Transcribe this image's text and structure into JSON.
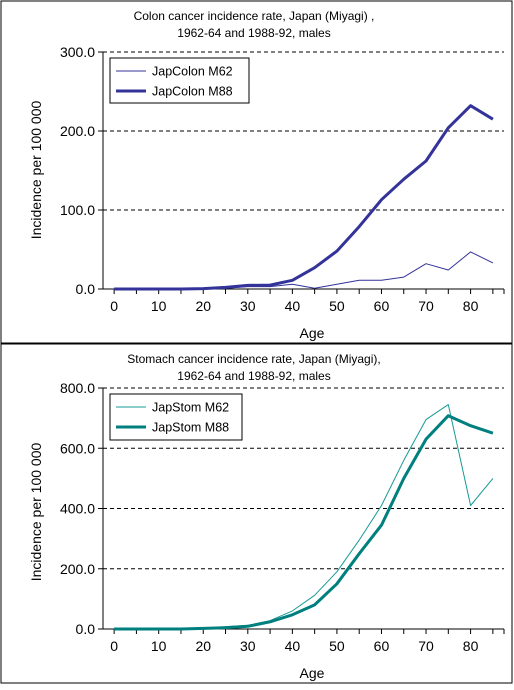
{
  "chart_data": [
    {
      "type": "line",
      "title_lines": [
        "Colon cancer incidence rate, Japan (Miyagi) ,",
        "1962-64 and 1988-92, males"
      ],
      "xlabel": "Age",
      "ylabel": "Incidence per 100 000",
      "x": [
        0,
        5,
        10,
        15,
        20,
        25,
        30,
        35,
        40,
        45,
        50,
        55,
        60,
        65,
        70,
        75,
        80,
        85
      ],
      "xticks": [
        "0",
        "10",
        "20",
        "30",
        "40",
        "50",
        "60",
        "70",
        "80"
      ],
      "xtick_values": [
        0,
        10,
        20,
        30,
        40,
        50,
        60,
        70,
        80
      ],
      "xlim": [
        -2.5,
        87.5
      ],
      "ylim": [
        0,
        300
      ],
      "yticks": [
        "0.0",
        "100.0",
        "200.0",
        "300.0"
      ],
      "ytick_values": [
        0,
        100,
        200,
        300
      ],
      "grid": "horizontal-dashed",
      "legend": "top-left",
      "series": [
        {
          "name": "JapColon M62",
          "color": "#333399",
          "width": 1,
          "values": [
            0,
            0,
            0,
            0,
            0,
            1,
            3,
            3,
            6,
            1,
            6,
            11,
            11,
            15,
            32,
            24,
            47,
            33
          ]
        },
        {
          "name": "JapColon M88",
          "color": "#333399",
          "width": 3,
          "values": [
            0,
            0,
            0,
            0,
            0.5,
            2,
            4.5,
            5,
            11,
            27,
            48,
            79,
            113,
            139,
            162,
            204,
            232,
            215
          ]
        }
      ]
    },
    {
      "type": "line",
      "title_lines": [
        "Stomach cancer incidence rate, Japan (Miyagi),",
        "1962-64 and 1988-92, males"
      ],
      "xlabel": "Age",
      "ylabel": "Incidence per 100 000",
      "x": [
        0,
        5,
        10,
        15,
        20,
        25,
        30,
        35,
        40,
        45,
        50,
        55,
        60,
        65,
        70,
        75,
        80,
        85
      ],
      "xticks": [
        "0",
        "10",
        "20",
        "30",
        "40",
        "50",
        "60",
        "70",
        "80"
      ],
      "xtick_values": [
        0,
        10,
        20,
        30,
        40,
        50,
        60,
        70,
        80
      ],
      "xlim": [
        -2.5,
        87.5
      ],
      "ylim": [
        0,
        800
      ],
      "yticks": [
        "0.0",
        "200.0",
        "400.0",
        "600.0",
        "800.0"
      ],
      "ytick_values": [
        0,
        200,
        400,
        600,
        800
      ],
      "grid": "horizontal-dashed",
      "legend": "top-left",
      "series": [
        {
          "name": "JapStom M62",
          "color": "#169b94",
          "width": 1,
          "values": [
            0,
            0,
            0,
            0,
            3,
            8,
            12,
            28,
            60,
            112,
            190,
            295,
            410,
            560,
            695,
            745,
            410,
            500
          ]
        },
        {
          "name": "JapStom M88",
          "color": "#007f7f",
          "width": 3,
          "values": [
            0,
            0,
            0,
            0,
            2,
            4,
            9,
            24,
            47,
            80,
            150,
            250,
            345,
            500,
            630,
            708,
            675,
            650
          ]
        }
      ]
    }
  ]
}
